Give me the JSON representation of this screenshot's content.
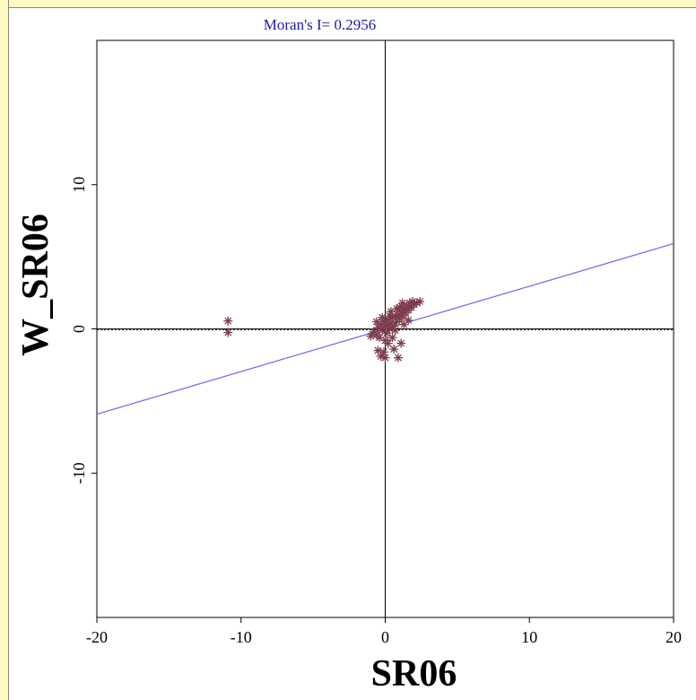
{
  "chart_data": {
    "type": "scatter",
    "title": "Moran's I= 0.2956",
    "xlabel": "SR06",
    "ylabel": "W_SR06",
    "xlim": [
      -20,
      20
    ],
    "ylim": [
      -20,
      20
    ],
    "x_ticks": [
      -20,
      -10,
      0,
      10,
      20
    ],
    "y_ticks": [
      -10,
      0,
      10
    ],
    "x_tick_labels": [
      "-20",
      "-10",
      "0",
      "10",
      "20"
    ],
    "y_tick_labels": [
      "-10",
      "0",
      "10"
    ],
    "grid": false,
    "colors": {
      "points": "#7a3b4b",
      "regression_line": "#6666ee",
      "mean_line": "#000080",
      "axes": "#000000",
      "title": "#1a1aa8",
      "background": "#ffffff",
      "frame": "#fffdc8"
    },
    "marker": "asterisk",
    "regression": {
      "slope": 0.2956,
      "intercept": 0
    },
    "series": [
      {
        "values": [
          {
            "x": -10.9,
            "y": 0.55
          },
          {
            "x": -10.9,
            "y": -0.25
          },
          {
            "x": -1.0,
            "y": -0.5
          },
          {
            "x": -0.8,
            "y": -0.2
          },
          {
            "x": -0.6,
            "y": -0.4
          },
          {
            "x": -0.5,
            "y": 0.1
          },
          {
            "x": -0.4,
            "y": -0.6
          },
          {
            "x": -0.3,
            "y": 0.3
          },
          {
            "x": -0.2,
            "y": -0.1
          },
          {
            "x": -0.1,
            "y": 0.5
          },
          {
            "x": 0.0,
            "y": 0.2
          },
          {
            "x": 0.1,
            "y": -0.3
          },
          {
            "x": 0.2,
            "y": 0.6
          },
          {
            "x": 0.3,
            "y": 0.0
          },
          {
            "x": 0.4,
            "y": 0.4
          },
          {
            "x": 0.5,
            "y": 0.8
          },
          {
            "x": 0.6,
            "y": 0.2
          },
          {
            "x": 0.7,
            "y": 0.9
          },
          {
            "x": 0.8,
            "y": 0.5
          },
          {
            "x": 0.9,
            "y": 1.0
          },
          {
            "x": 1.0,
            "y": 0.7
          },
          {
            "x": 1.1,
            "y": 1.2
          },
          {
            "x": 1.2,
            "y": 0.9
          },
          {
            "x": 1.3,
            "y": 1.4
          },
          {
            "x": 1.4,
            "y": 1.1
          },
          {
            "x": 1.5,
            "y": 1.6
          },
          {
            "x": 1.6,
            "y": 1.3
          },
          {
            "x": 1.7,
            "y": 1.8
          },
          {
            "x": 1.8,
            "y": 1.5
          },
          {
            "x": 1.9,
            "y": 1.9
          },
          {
            "x": 2.0,
            "y": 1.7
          },
          {
            "x": 2.2,
            "y": 1.8
          },
          {
            "x": 2.4,
            "y": 1.9
          },
          {
            "x": 1.2,
            "y": 1.8
          },
          {
            "x": 0.3,
            "y": 0.9
          },
          {
            "x": -0.2,
            "y": 0.8
          },
          {
            "x": 0.0,
            "y": -0.8
          },
          {
            "x": 0.2,
            "y": -1.0
          },
          {
            "x": -0.5,
            "y": -1.5
          },
          {
            "x": -0.3,
            "y": -1.9
          },
          {
            "x": 0.0,
            "y": -2.0
          },
          {
            "x": -0.1,
            "y": -1.6
          },
          {
            "x": 0.6,
            "y": -1.4
          },
          {
            "x": 0.9,
            "y": -2.0
          },
          {
            "x": 1.1,
            "y": -1.0
          },
          {
            "x": 0.5,
            "y": -0.6
          },
          {
            "x": 1.3,
            "y": 0.3
          },
          {
            "x": 0.8,
            "y": 1.4
          },
          {
            "x": 0.4,
            "y": 1.2
          },
          {
            "x": -0.6,
            "y": 0.5
          },
          {
            "x": 1.6,
            "y": 0.6
          },
          {
            "x": 0.2,
            "y": 0.3
          },
          {
            "x": 0.7,
            "y": -0.1
          },
          {
            "x": 1.0,
            "y": 1.5
          }
        ]
      }
    ]
  }
}
